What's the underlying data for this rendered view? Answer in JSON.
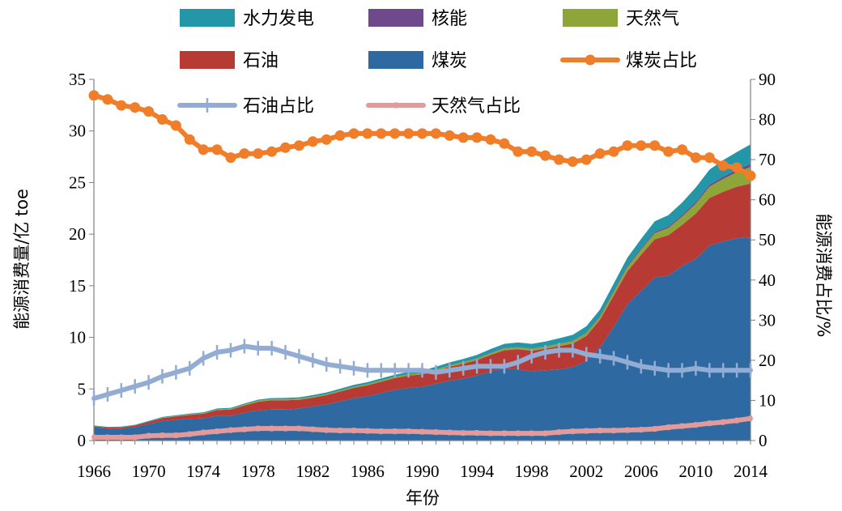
{
  "chart_data": {
    "type": "area",
    "x": [
      1966,
      1967,
      1968,
      1969,
      1970,
      1971,
      1972,
      1973,
      1974,
      1975,
      1976,
      1977,
      1978,
      1979,
      1980,
      1981,
      1982,
      1983,
      1984,
      1985,
      1986,
      1987,
      1988,
      1989,
      1990,
      1991,
      1992,
      1993,
      1994,
      1995,
      1996,
      1997,
      1998,
      1999,
      2000,
      2001,
      2002,
      2003,
      2004,
      2005,
      2006,
      2007,
      2008,
      2009,
      2010,
      2011,
      2012,
      2013,
      2014
    ],
    "x_ticks": [
      "1966",
      "1970",
      "1974",
      "1978",
      "1982",
      "1986",
      "1990",
      "1994",
      "1998",
      "2002",
      "2006",
      "2010",
      "2014"
    ],
    "xlabel": "年份",
    "ylabel_left": "能源消费量/亿 toe",
    "ylabel_right": "能源消费占比/%",
    "ylim_left": [
      0,
      35
    ],
    "ylim_right": [
      0,
      90
    ],
    "yticks_left": [
      "0",
      "5",
      "10",
      "15",
      "20",
      "25",
      "30",
      "35"
    ],
    "yticks_right": [
      "0",
      "10",
      "20",
      "30",
      "40",
      "50",
      "60",
      "70",
      "80",
      "90"
    ],
    "stack_order": [
      "煤炭",
      "石油",
      "天然气",
      "核能",
      "水力发电"
    ],
    "series": [
      {
        "name": "煤炭",
        "kind": "area",
        "color": "#2e6aa1",
        "values": [
          1.3,
          1.15,
          1.15,
          1.3,
          1.6,
          1.9,
          2.0,
          2.1,
          2.15,
          2.4,
          2.4,
          2.7,
          2.9,
          3.0,
          3.0,
          3.1,
          3.3,
          3.5,
          3.8,
          4.1,
          4.3,
          4.6,
          4.9,
          5.1,
          5.2,
          5.5,
          5.8,
          6.0,
          6.3,
          6.7,
          7.0,
          6.9,
          6.7,
          6.8,
          6.9,
          7.1,
          7.7,
          9.0,
          11.0,
          13.2,
          14.5,
          15.8,
          16.0,
          16.9,
          17.6,
          18.9,
          19.3,
          19.6,
          19.7
        ]
      },
      {
        "name": "石油",
        "kind": "area",
        "color": "#b83a34",
        "values": [
          0.1,
          0.12,
          0.14,
          0.16,
          0.22,
          0.28,
          0.33,
          0.38,
          0.45,
          0.55,
          0.6,
          0.7,
          0.85,
          0.9,
          0.9,
          0.85,
          0.85,
          0.9,
          0.95,
          1.0,
          1.05,
          1.1,
          1.15,
          1.2,
          1.2,
          1.25,
          1.35,
          1.45,
          1.5,
          1.6,
          1.75,
          1.95,
          2.0,
          2.1,
          2.25,
          2.3,
          2.45,
          2.7,
          3.05,
          3.2,
          3.5,
          3.7,
          3.9,
          4.0,
          4.4,
          4.6,
          4.8,
          5.0,
          5.2
        ]
      },
      {
        "name": "天然气",
        "kind": "area",
        "color": "#8ea53a",
        "values": [
          0.01,
          0.01,
          0.01,
          0.02,
          0.02,
          0.03,
          0.04,
          0.05,
          0.06,
          0.07,
          0.08,
          0.1,
          0.11,
          0.12,
          0.12,
          0.11,
          0.1,
          0.1,
          0.1,
          0.11,
          0.12,
          0.12,
          0.13,
          0.13,
          0.13,
          0.13,
          0.14,
          0.15,
          0.15,
          0.16,
          0.17,
          0.18,
          0.19,
          0.2,
          0.22,
          0.24,
          0.26,
          0.3,
          0.35,
          0.4,
          0.5,
          0.6,
          0.7,
          0.8,
          0.95,
          1.1,
          1.25,
          1.4,
          1.6
        ]
      },
      {
        "name": "核能",
        "kind": "area",
        "color": "#6e4a8c",
        "values": [
          0,
          0,
          0,
          0,
          0,
          0,
          0,
          0,
          0,
          0,
          0,
          0,
          0,
          0,
          0,
          0,
          0,
          0,
          0,
          0,
          0,
          0,
          0,
          0,
          0,
          0,
          0,
          0,
          0.03,
          0.03,
          0.03,
          0.03,
          0.03,
          0.03,
          0.04,
          0.04,
          0.06,
          0.1,
          0.11,
          0.12,
          0.13,
          0.14,
          0.15,
          0.16,
          0.17,
          0.2,
          0.22,
          0.25,
          0.3
        ]
      },
      {
        "name": "水力发电",
        "kind": "area",
        "color": "#2396a8",
        "values": [
          0.05,
          0.05,
          0.05,
          0.05,
          0.06,
          0.07,
          0.08,
          0.08,
          0.08,
          0.09,
          0.09,
          0.09,
          0.1,
          0.1,
          0.12,
          0.13,
          0.15,
          0.16,
          0.17,
          0.18,
          0.19,
          0.2,
          0.2,
          0.22,
          0.25,
          0.27,
          0.28,
          0.3,
          0.32,
          0.38,
          0.42,
          0.44,
          0.45,
          0.46,
          0.5,
          0.56,
          0.6,
          0.6,
          0.7,
          0.8,
          0.9,
          1.0,
          1.1,
          1.2,
          1.4,
          1.45,
          1.6,
          1.7,
          1.9
        ]
      },
      {
        "name": "煤炭占比",
        "kind": "line",
        "marker": "circle",
        "color": "#f07d2a",
        "axis": "right",
        "values": [
          86,
          85,
          83.5,
          83,
          82,
          80,
          78.5,
          75,
          72.5,
          72.5,
          70.5,
          71.5,
          71.5,
          72,
          73,
          73.5,
          74.5,
          75,
          76,
          76.5,
          76.5,
          76.5,
          76.5,
          76.5,
          76.5,
          76.5,
          76,
          75.5,
          75.5,
          75,
          74,
          72,
          72,
          71,
          70,
          69.5,
          70,
          71.5,
          72,
          73.5,
          73.5,
          73.5,
          72,
          72.5,
          70.5,
          70.5,
          68.5,
          68,
          66
        ]
      },
      {
        "name": "石油占比",
        "kind": "line",
        "marker": "plus",
        "color": "#93acd4",
        "axis": "right",
        "values": [
          10.5,
          11.5,
          12.5,
          13.5,
          14.5,
          16,
          17,
          18,
          20.5,
          22,
          22.5,
          23.5,
          23,
          23,
          22,
          21,
          20,
          19,
          18.5,
          18,
          17.5,
          17.5,
          17.5,
          17.5,
          17.5,
          17,
          17.5,
          18,
          18.5,
          18.5,
          18.5,
          19.5,
          21,
          22,
          22.5,
          22.5,
          21.5,
          21,
          20.5,
          19.5,
          18.5,
          18,
          17.5,
          17.5,
          18,
          17.5,
          17.5,
          17.5,
          17.5
        ]
      },
      {
        "name": "天然气占比",
        "kind": "line",
        "marker": "bar",
        "color": "#e29a9a",
        "axis": "right",
        "values": [
          0.8,
          0.8,
          0.8,
          0.8,
          1.2,
          1.3,
          1.3,
          1.6,
          2,
          2.3,
          2.6,
          2.8,
          3,
          3,
          3,
          3,
          2.8,
          2.6,
          2.5,
          2.5,
          2.4,
          2.3,
          2.3,
          2.3,
          2.2,
          2.1,
          2,
          1.9,
          1.9,
          1.8,
          1.8,
          1.8,
          1.8,
          1.8,
          2.1,
          2.3,
          2.4,
          2.5,
          2.5,
          2.6,
          2.7,
          2.9,
          3.3,
          3.6,
          3.9,
          4.3,
          4.6,
          5,
          5.5
        ]
      }
    ],
    "legend": {
      "placement": "top",
      "items": [
        {
          "name": "水力发电",
          "symbol": "patch",
          "color": "#2396a8"
        },
        {
          "name": "核能",
          "symbol": "patch",
          "color": "#6e4a8c"
        },
        {
          "name": "天然气",
          "symbol": "patch",
          "color": "#8ea53a"
        },
        {
          "name": "石油",
          "symbol": "patch",
          "color": "#b83a34"
        },
        {
          "name": "煤炭",
          "symbol": "patch",
          "color": "#2e6aa1"
        },
        {
          "name": "煤炭占比",
          "symbol": "line-circle",
          "color": "#f07d2a"
        },
        {
          "name": "石油占比",
          "symbol": "line-plus",
          "color": "#93acd4"
        },
        {
          "name": "天然气占比",
          "symbol": "line-bar",
          "color": "#e29a9a"
        }
      ]
    },
    "grid": false
  }
}
